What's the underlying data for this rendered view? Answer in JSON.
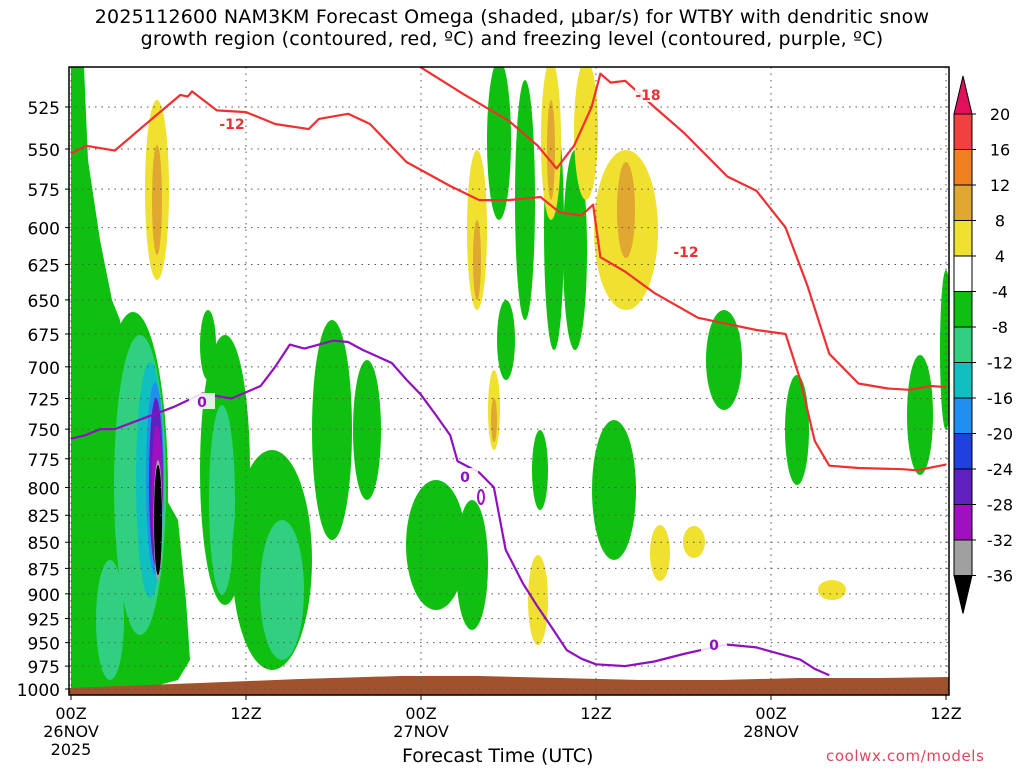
{
  "title": {
    "line1": "2025112600 NAM3KM Forecast Omega (shaded, μbar/s) for WTBY with dendritic snow",
    "line2": "growth region (contoured, red, ºC) and freezing level (contoured, purple, ºC)"
  },
  "footer": {
    "credit": "coolwx.com/models"
  },
  "chart_data": {
    "type": "heatmap",
    "title": "2025112600 NAM3KM Forecast Omega (shaded, μbar/s) for WTBY with dendritic snow growth region (contoured, red, ºC) and freezing level (contoured, purple, ºC)",
    "xlabel": "Forecast Time (UTC)",
    "ylabel": "",
    "x_range_hours": [
      0,
      60
    ],
    "y_range_hpa": [
      1000,
      500
    ],
    "y_scale": "log-pressure",
    "grid": true,
    "x_ticks": [
      {
        "hour": 0,
        "label": "00Z",
        "date": "26NOV",
        "year": "2025"
      },
      {
        "hour": 12,
        "label": "12Z",
        "date": "",
        "year": ""
      },
      {
        "hour": 24,
        "label": "00Z",
        "date": "27NOV",
        "year": ""
      },
      {
        "hour": 36,
        "label": "12Z",
        "date": "",
        "year": ""
      },
      {
        "hour": 48,
        "label": "00Z",
        "date": "28NOV",
        "year": ""
      },
      {
        "hour": 60,
        "label": "12Z",
        "date": "",
        "year": ""
      }
    ],
    "y_ticks": [
      1000,
      975,
      950,
      925,
      900,
      875,
      850,
      825,
      800,
      775,
      750,
      725,
      700,
      675,
      650,
      625,
      600,
      575,
      550,
      525
    ],
    "colorbar": {
      "labels": [
        20,
        16,
        12,
        8,
        4,
        -4,
        -8,
        -12,
        -16,
        -20,
        -24,
        -28,
        -32,
        -36
      ],
      "colors": [
        "#e0105a",
        "#f04040",
        "#f08020",
        "#e0a830",
        "#f0e030",
        "#ffffff",
        "#10c010",
        "#30d080",
        "#10c0c0",
        "#2090f0",
        "#2040e0",
        "#6020c0",
        "#a010c0",
        "#a0a0a0",
        "#000000"
      ]
    },
    "contour_labels": [
      {
        "text": "-12",
        "color": "#f03030"
      },
      {
        "text": "-18",
        "color": "#f03030"
      },
      {
        "text": "-12",
        "color": "#f03030"
      },
      {
        "text": "0",
        "color": "#9010c0"
      },
      {
        "text": "0",
        "color": "#9010c0"
      },
      {
        "text": "0",
        "color": "#9010c0"
      }
    ],
    "series": [
      {
        "kind": "contour",
        "value": -12,
        "color": "#f03030",
        "points": [
          [
            0,
            553
          ],
          [
            1,
            548
          ],
          [
            3,
            551
          ],
          [
            5,
            536
          ],
          [
            7.5,
            518
          ],
          [
            8,
            519
          ],
          [
            8.3,
            516
          ],
          [
            10,
            527
          ],
          [
            12,
            528
          ],
          [
            14,
            535
          ],
          [
            16.3,
            538
          ],
          [
            17,
            532
          ],
          [
            19,
            529
          ],
          [
            20.5,
            535
          ],
          [
            23,
            558
          ],
          [
            26,
            573
          ],
          [
            28,
            582
          ],
          [
            30,
            582
          ],
          [
            32.2,
            580
          ],
          [
            33.5,
            590
          ],
          [
            35,
            592
          ],
          [
            35.8,
            585
          ],
          [
            36.3,
            620
          ],
          [
            38,
            630
          ],
          [
            40,
            645
          ],
          [
            43,
            663
          ],
          [
            47,
            672
          ],
          [
            49,
            675
          ],
          [
            50,
            710
          ],
          [
            51,
            760
          ],
          [
            52,
            781
          ],
          [
            54,
            783
          ],
          [
            57,
            784
          ],
          [
            58,
            785
          ],
          [
            60,
            780
          ]
        ]
      },
      {
        "kind": "contour",
        "value": -18,
        "color": "#f03030",
        "points": [
          [
            23.5,
            500
          ],
          [
            27,
            518
          ],
          [
            30,
            533
          ],
          [
            32,
            548
          ],
          [
            33.3,
            562
          ],
          [
            34.5,
            548
          ],
          [
            35.7,
            525
          ],
          [
            36.3,
            506
          ],
          [
            37,
            511
          ],
          [
            38,
            510
          ],
          [
            40,
            525
          ],
          [
            42,
            540
          ],
          [
            45,
            567
          ],
          [
            47,
            576
          ],
          [
            49,
            600
          ],
          [
            50.5,
            640
          ],
          [
            52,
            690
          ],
          [
            54,
            713
          ],
          [
            56,
            717
          ],
          [
            57.5,
            718
          ],
          [
            59,
            715
          ],
          [
            60,
            716
          ]
        ]
      },
      {
        "kind": "contour",
        "value": 0,
        "color": "#9010c0",
        "points": [
          [
            0,
            758
          ],
          [
            1,
            755
          ],
          [
            2,
            750
          ],
          [
            3,
            750
          ],
          [
            5,
            741
          ],
          [
            7,
            732
          ],
          [
            9,
            721
          ],
          [
            11,
            725
          ],
          [
            13,
            715
          ],
          [
            14,
            700
          ],
          [
            15,
            683
          ],
          [
            16,
            686
          ],
          [
            18,
            680
          ],
          [
            19,
            681
          ],
          [
            20,
            687
          ],
          [
            22,
            697
          ],
          [
            23,
            710
          ],
          [
            24,
            722
          ],
          [
            25,
            738
          ],
          [
            26,
            755
          ],
          [
            26.5,
            777
          ],
          [
            28,
            787
          ],
          [
            29,
            800
          ],
          [
            29.8,
            857
          ],
          [
            31,
            890
          ],
          [
            32,
            913
          ],
          [
            33,
            935
          ],
          [
            34,
            958
          ],
          [
            35,
            967
          ],
          [
            36,
            973
          ],
          [
            38,
            975
          ],
          [
            40,
            970
          ],
          [
            42,
            962
          ],
          [
            44,
            955
          ],
          [
            45,
            952
          ],
          [
            47,
            955
          ],
          [
            50,
            968
          ],
          [
            51,
            978
          ],
          [
            52,
            985
          ]
        ]
      }
    ]
  }
}
